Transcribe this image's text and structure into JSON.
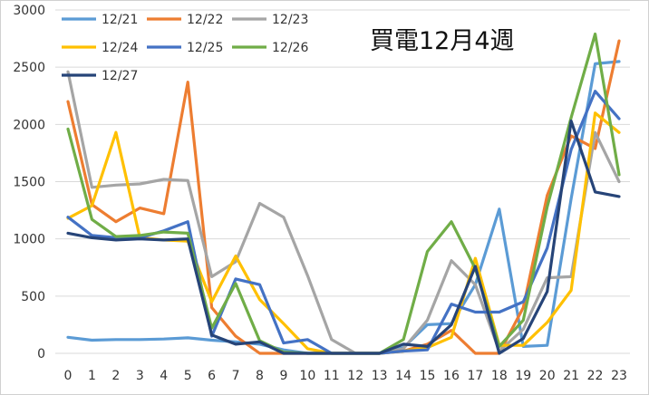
{
  "chart_data": {
    "type": "line",
    "title": "買電12月4週",
    "xlabel": "",
    "ylabel": "",
    "ylim": [
      0,
      3000
    ],
    "yticks": [
      0,
      500,
      1000,
      1500,
      2000,
      2500,
      3000
    ],
    "grid": true,
    "legend_position": "top-left",
    "x": [
      0,
      1,
      2,
      3,
      4,
      5,
      6,
      7,
      8,
      9,
      10,
      11,
      12,
      13,
      14,
      15,
      16,
      17,
      18,
      19,
      20,
      21,
      22,
      23
    ],
    "series": [
      {
        "name": "12/21",
        "color": "#5b9bd5",
        "values": [
          140,
          115,
          120,
          120,
          125,
          135,
          115,
          100,
          80,
          30,
          0,
          0,
          0,
          0,
          50,
          250,
          260,
          600,
          1260,
          60,
          70,
          1350,
          2530,
          2550
        ]
      },
      {
        "name": "12/22",
        "color": "#ed7d31",
        "values": [
          2200,
          1300,
          1150,
          1270,
          1220,
          2370,
          400,
          150,
          0,
          0,
          0,
          0,
          0,
          0,
          20,
          80,
          200,
          0,
          0,
          400,
          1380,
          1900,
          1790,
          2730
        ]
      },
      {
        "name": "12/23",
        "color": "#a5a5a5",
        "values": [
          2460,
          1450,
          1470,
          1480,
          1520,
          1510,
          670,
          800,
          1310,
          1190,
          680,
          120,
          0,
          0,
          40,
          290,
          810,
          600,
          20,
          210,
          660,
          670,
          1930,
          1500
        ]
      },
      {
        "name": "12/24",
        "color": "#ffc000",
        "values": [
          1180,
          1290,
          1930,
          1010,
          990,
          980,
          450,
          850,
          470,
          260,
          40,
          0,
          0,
          0,
          20,
          50,
          140,
          830,
          70,
          70,
          270,
          550,
          2100,
          1930
        ]
      },
      {
        "name": "12/25",
        "color": "#4472c4",
        "values": [
          1190,
          1030,
          1010,
          1010,
          1070,
          1150,
          150,
          650,
          600,
          90,
          120,
          0,
          0,
          0,
          20,
          30,
          430,
          360,
          360,
          450,
          920,
          1780,
          2290,
          2050
        ]
      },
      {
        "name": "12/26",
        "color": "#70ad47",
        "values": [
          1960,
          1170,
          1020,
          1030,
          1060,
          1050,
          220,
          610,
          110,
          10,
          0,
          0,
          0,
          0,
          120,
          890,
          1150,
          740,
          60,
          290,
          1280,
          2060,
          2790,
          1560
        ]
      },
      {
        "name": "12/27",
        "color": "#264478",
        "values": [
          1050,
          1010,
          990,
          1000,
          990,
          1000,
          160,
          80,
          100,
          0,
          0,
          0,
          0,
          0,
          80,
          60,
          250,
          760,
          0,
          130,
          540,
          2030,
          1410,
          1370
        ]
      }
    ]
  }
}
